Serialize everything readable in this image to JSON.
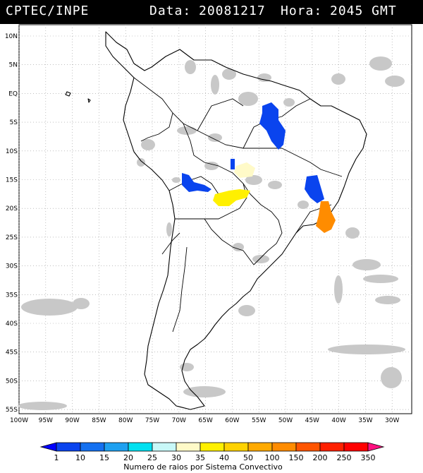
{
  "header": {
    "source": "CPTEC/INPE",
    "date_label": "Data:",
    "date": "20081217",
    "time_label": "Hora:",
    "time": "2045 GMT"
  },
  "map": {
    "lat_labels": [
      "10N",
      "5N",
      "EQ",
      "5S",
      "10S",
      "15S",
      "20S",
      "25S",
      "30S",
      "35S",
      "40S",
      "45S",
      "50S",
      "55S"
    ],
    "lon_labels": [
      "100W",
      "95W",
      "90W",
      "85W",
      "80W",
      "75W",
      "70W",
      "65W",
      "60W",
      "55W",
      "50W",
      "45W",
      "40W",
      "35W",
      "30W"
    ]
  },
  "colorbar": {
    "labels": [
      "1",
      "10",
      "15",
      "20",
      "25",
      "30",
      "35",
      "40",
      "50",
      "100",
      "150",
      "200",
      "250",
      "350"
    ],
    "colors": [
      "#0000ff",
      "#0a44ee",
      "#1470f0",
      "#1ea0f0",
      "#00e0f0",
      "#c8f8f8",
      "#fffac8",
      "#fff000",
      "#ffd200",
      "#ffaa00",
      "#ff8c00",
      "#ff5500",
      "#ff2000",
      "#ff0000",
      "#ff1080"
    ],
    "title": "Numero de raios por Sistema Convectivo"
  }
}
